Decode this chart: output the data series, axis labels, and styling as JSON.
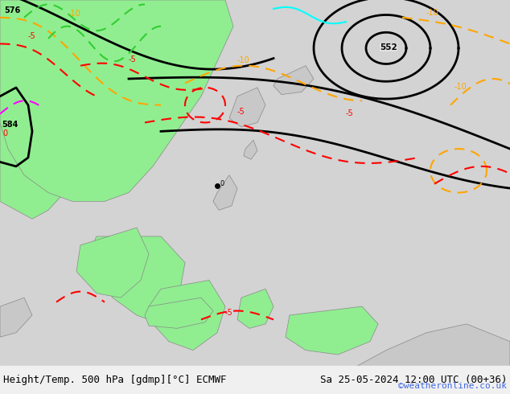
{
  "title_left": "Height/Temp. 500 hPa [gdmp][°C] ECMWF",
  "title_right": "Sa 25-05-2024 12:00 UTC (00+36)",
  "credit": "©weatheronline.co.uk",
  "credit_color": "#4169E1",
  "bg_color": "#d3d3d3",
  "land_green_color": "#90EE90",
  "land_gray_color": "#c8c8c8",
  "sea_color": "#e8e8e8",
  "bottom_bar_color": "#f0f0f0",
  "contour_black_color": "#000000",
  "contour_orange_color": "#FFA500",
  "contour_red_color": "#FF0000",
  "contour_magenta_color": "#FF00FF",
  "contour_green_color": "#32CD32",
  "contour_cyan_color": "#00FFFF",
  "title_fontsize": 9,
  "credit_fontsize": 8
}
